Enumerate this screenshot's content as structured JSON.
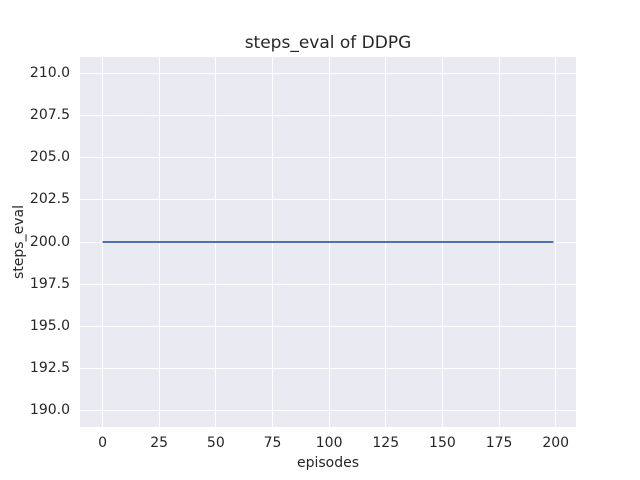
{
  "figure": {
    "background": "#ffffff",
    "text_color": "#262626"
  },
  "chart_data": {
    "type": "line",
    "title": "steps_eval of DDPG",
    "xlabel": "episodes",
    "ylabel": "steps_eval",
    "plot_background": "#eaeaf2",
    "grid_color": "#ffffff",
    "grid": true,
    "legend": false,
    "xlim": [
      -9.95,
      208.95
    ],
    "ylim": [
      189.0,
      211.0
    ],
    "x_ticks": [
      0,
      25,
      50,
      75,
      100,
      125,
      150,
      175,
      200
    ],
    "x_tick_labels": [
      "0",
      "25",
      "50",
      "75",
      "100",
      "125",
      "150",
      "175",
      "200"
    ],
    "y_ticks": [
      190.0,
      192.5,
      195.0,
      197.5,
      200.0,
      202.5,
      205.0,
      207.5,
      210.0
    ],
    "y_tick_labels": [
      "190.0",
      "192.5",
      "195.0",
      "197.5",
      "200.0",
      "202.5",
      "205.0",
      "207.5",
      "210.0"
    ],
    "series": [
      {
        "name": "DDPG steps_eval",
        "color": "#4c72b0",
        "line_width": 2,
        "x": [
          0,
          199
        ],
        "y": [
          200.0,
          200.0
        ]
      }
    ]
  }
}
